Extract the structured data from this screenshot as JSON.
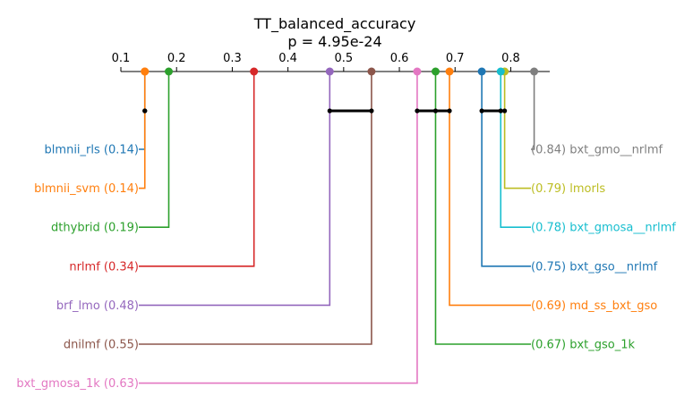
{
  "chart_data": {
    "type": "critical-difference",
    "title": "TT_balanced_accuracy",
    "subtitle": "p = 4.95e-24",
    "axis": {
      "range": [
        0.1,
        0.87
      ],
      "ticks": [
        0.1,
        0.2,
        0.3,
        0.4,
        0.5,
        0.6,
        0.7,
        0.8
      ],
      "tick_labels": [
        "0.1",
        "0.2",
        "0.3",
        "0.4",
        "0.5",
        "0.6",
        "0.7",
        "0.8"
      ]
    },
    "methods": [
      {
        "name": "blmnii_rls",
        "label": "blmnii_rls (0.14)",
        "value": 0.143,
        "side": "left",
        "color": "#1f77b4",
        "marker_color": "#ff7f0e"
      },
      {
        "name": "blmnii_svm",
        "label": "blmnii_svm (0.14)",
        "value": 0.143,
        "side": "left",
        "color": "#ff7f0e",
        "marker_color": "#ff7f0e"
      },
      {
        "name": "dthybrid",
        "label": "dthybrid (0.19)",
        "value": 0.186,
        "side": "left",
        "color": "#2ca02c",
        "marker_color": "#2ca02c"
      },
      {
        "name": "nrlmf",
        "label": "nrlmf (0.34)",
        "value": 0.339,
        "side": "left",
        "color": "#d62728",
        "marker_color": "#d62728"
      },
      {
        "name": "brf_lmo",
        "label": "brf_lmo (0.48)",
        "value": 0.475,
        "side": "left",
        "color": "#9467bd",
        "marker_color": "#9467bd"
      },
      {
        "name": "dnilmf",
        "label": "dnilmf (0.55)",
        "value": 0.55,
        "side": "left",
        "color": "#8c564b",
        "marker_color": "#8c564b"
      },
      {
        "name": "bxt_gmosa_1k",
        "label": "bxt_gmosa_1k (0.63)",
        "value": 0.632,
        "side": "left",
        "color": "#e377c2",
        "marker_color": "#e377c2"
      },
      {
        "name": "bxt_gmo__nrlmf",
        "label": "(0.84) bxt_gmo__nrlmf",
        "value": 0.842,
        "side": "right",
        "color": "#7f7f7f",
        "marker_color": "#7f7f7f"
      },
      {
        "name": "lmorls",
        "label": "(0.79) lmorls",
        "value": 0.789,
        "side": "right",
        "color": "#bcbd22",
        "marker_color": "#bcbd22"
      },
      {
        "name": "bxt_gmosa__nrlmf",
        "label": "(0.78) bxt_gmosa__nrlmf",
        "value": 0.782,
        "side": "right",
        "color": "#17becf",
        "marker_color": "#17becf"
      },
      {
        "name": "bxt_gso__nrlmf",
        "label": "(0.75) bxt_gso__nrlmf",
        "value": 0.748,
        "side": "right",
        "color": "#1f77b4",
        "marker_color": "#1f77b4"
      },
      {
        "name": "md_ss_bxt_gso",
        "label": "(0.69) md_ss_bxt_gso",
        "value": 0.69,
        "side": "right",
        "color": "#ff7f0e",
        "marker_color": "#ff7f0e"
      },
      {
        "name": "bxt_gso_1k",
        "label": "(0.67) bxt_gso_1k",
        "value": 0.665,
        "side": "right",
        "color": "#2ca02c",
        "marker_color": "#2ca02c"
      }
    ],
    "cliques": [
      {
        "from": 0.143,
        "to": 0.143,
        "members": [
          "blmnii_rls",
          "blmnii_svm"
        ]
      },
      {
        "from": 0.475,
        "to": 0.55,
        "members": [
          "brf_lmo",
          "dnilmf"
        ]
      },
      {
        "from": 0.632,
        "to": 0.69,
        "members": [
          "bxt_gmosa_1k",
          "bxt_gso_1k",
          "md_ss_bxt_gso"
        ]
      },
      {
        "from": 0.748,
        "to": 0.782,
        "members": [
          "bxt_gso__nrlmf",
          "bxt_gmosa__nrlmf",
          "lmorls"
        ]
      }
    ]
  }
}
